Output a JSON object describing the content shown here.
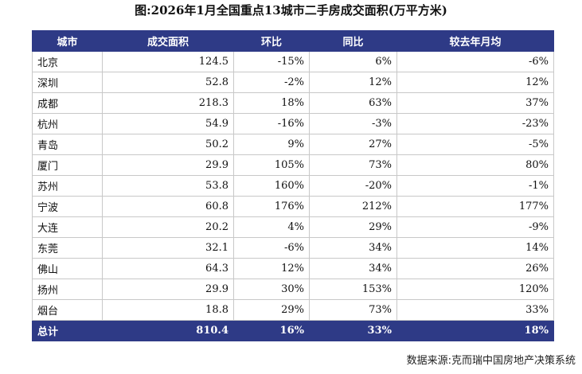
{
  "title": "图:2026年1月全国重点13城市二手房成交面积(万平方米)",
  "table": {
    "header": [
      "城市",
      "成交面积",
      "环比",
      "同比",
      "较去年月均"
    ],
    "rows": [
      [
        "北京",
        "124.5",
        "-15%",
        "6%",
        "-6%"
      ],
      [
        "深圳",
        "52.8",
        "-2%",
        "12%",
        "12%"
      ],
      [
        "成都",
        "218.3",
        "18%",
        "63%",
        "37%"
      ],
      [
        "杭州",
        "54.9",
        "-16%",
        "-3%",
        "-23%"
      ],
      [
        "青岛",
        "50.2",
        "9%",
        "27%",
        "-5%"
      ],
      [
        "厦门",
        "29.9",
        "105%",
        "73%",
        "80%"
      ],
      [
        "苏州",
        "53.8",
        "160%",
        "-20%",
        "-1%"
      ],
      [
        "宁波",
        "60.8",
        "176%",
        "212%",
        "177%"
      ],
      [
        "大连",
        "20.2",
        "4%",
        "29%",
        "-9%"
      ],
      [
        "东莞",
        "32.1",
        "-6%",
        "34%",
        "14%"
      ],
      [
        "佛山",
        "64.3",
        "12%",
        "34%",
        "26%"
      ],
      [
        "扬州",
        "29.9",
        "30%",
        "153%",
        "120%"
      ],
      [
        "烟台",
        "18.8",
        "29%",
        "73%",
        "33%"
      ]
    ],
    "total": [
      "总计",
      "810.4",
      "16%",
      "33%",
      "18%"
    ]
  },
  "source": "数据来源:克而瑞中国房地产决策系统"
}
